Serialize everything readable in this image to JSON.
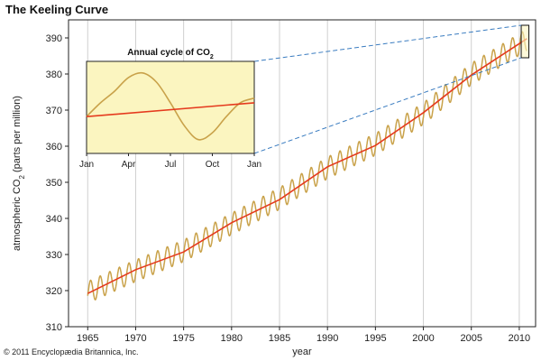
{
  "title": "The Keeling Curve",
  "copyright": "© 2011 Encyclopædia Britannica, Inc.",
  "colors": {
    "seasonal": "#C9A24A",
    "trend": "#E53A1E",
    "inset_bg": "#FBF5C0",
    "connector": "#3A7CC0",
    "grid": "#CFCFCF"
  },
  "chart_data": {
    "type": "line",
    "title": "The Keeling Curve",
    "xlabel": "year",
    "ylabel_prefix": "atmospheric CO",
    "ylabel_sub": "2",
    "ylabel_suffix": " (parts per million)",
    "xlim": [
      1963,
      2011.7
    ],
    "ylim": [
      310,
      395
    ],
    "x_ticks": [
      1965,
      1970,
      1975,
      1980,
      1985,
      1990,
      1995,
      2000,
      2005,
      2010
    ],
    "y_ticks": [
      310,
      320,
      330,
      340,
      350,
      360,
      370,
      380,
      390
    ],
    "grid": "vertical",
    "series": [
      {
        "kind": "seasonal",
        "x": [
          1965,
          1970,
          1975,
          1980,
          1985,
          1990,
          1995,
          2000,
          2005,
          2010.8
        ],
        "y": [
          319.5,
          325.5,
          331.0,
          338.5,
          345.5,
          354.0,
          360.5,
          369.0,
          380.0,
          389.5
        ],
        "seasonal_amplitude": 3.0
      },
      {
        "kind": "trend",
        "x": [
          1965,
          1970,
          1975,
          1980,
          1985,
          1990,
          1995,
          2000,
          2005,
          2010.8
        ],
        "y": [
          319.5,
          325.5,
          331.0,
          338.5,
          345.5,
          354.0,
          360.5,
          369.0,
          380.0,
          389.5
        ]
      }
    ],
    "inset": {
      "title_prefix": "Annual cycle of CO",
      "title_sub": "2",
      "x_ticks": [
        "Jan",
        "Apr",
        "Jul",
        "Oct",
        "Jan"
      ],
      "seasonal": {
        "month": [
          0,
          1,
          2,
          3,
          4,
          5,
          6,
          7,
          8,
          9,
          10,
          11,
          12
        ],
        "y": [
          0.0,
          3.0,
          5.5,
          8.5,
          9.5,
          7.5,
          3.0,
          -2.0,
          -5.0,
          -3.5,
          0.0,
          3.0,
          4.0
        ]
      },
      "trend": {
        "month": [
          0,
          12
        ],
        "y": [
          0.0,
          3.0
        ]
      },
      "ylim": [
        -8,
        12
      ]
    }
  }
}
